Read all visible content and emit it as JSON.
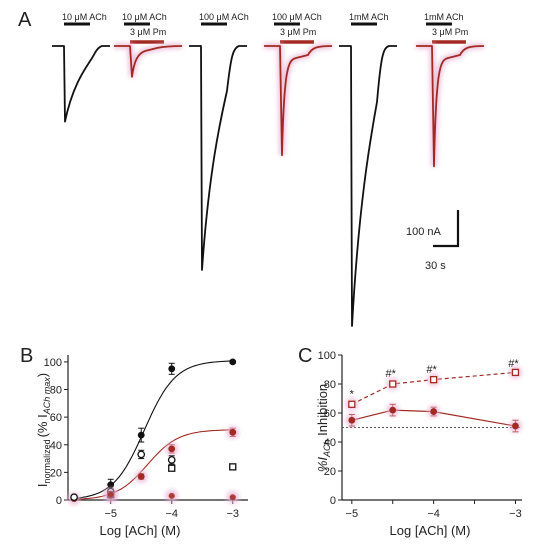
{
  "panels": {
    "A": "A",
    "B": "B",
    "C": "C"
  },
  "colors": {
    "black": "#111111",
    "red": "#a32a22",
    "pink_glow": "#e9b3d6",
    "dash": "#555555"
  },
  "traces": [
    {
      "ach_label": "10 μM ACh",
      "pm_label": "",
      "color": "black",
      "peak_fraction": 0.27
    },
    {
      "ach_label": "10 μM ACh",
      "pm_label": "3 μM Pm",
      "color": "red",
      "peak_fraction": 0.11
    },
    {
      "ach_label": "100 μM ACh",
      "pm_label": "",
      "color": "black",
      "peak_fraction": 0.8
    },
    {
      "ach_label": "100 μM ACh",
      "pm_label": "3 μM Pm",
      "color": "red",
      "peak_fraction": 0.39
    },
    {
      "ach_label": "1mM ACh",
      "pm_label": "",
      "color": "black",
      "peak_fraction": 1.0
    },
    {
      "ach_label": "1mM ACh",
      "pm_label": "3 μM Pm",
      "color": "red",
      "peak_fraction": 0.43
    }
  ],
  "scale_bar": {
    "current": "100 nA",
    "time": "30 s"
  },
  "chart_data": [
    {
      "panel": "B",
      "type": "scatter",
      "xlabel": "Log [ACh] (M)",
      "ylabel_main": "I",
      "ylabel_sub": "normalized",
      "ylabel_paren": "(% I",
      "ylabel_paren_sub": "ACh max",
      "ylabel_close": ")",
      "xlim": [
        -5.7,
        -2.75
      ],
      "ylim": [
        0,
        105
      ],
      "xticks": [
        -5,
        -4,
        -3
      ],
      "xtick_labels": [
        "−5",
        "−4",
        "−3"
      ],
      "yticks": [
        0,
        20,
        40,
        60,
        80,
        100
      ],
      "series": [
        {
          "marker": "filled-circle",
          "color": "black",
          "fit": true,
          "fit_top": 101,
          "fit_ec50": -4.45,
          "fit_hill": 1.7,
          "x": [
            -5.6,
            -5.0,
            -4.5,
            -4.0,
            -3.0
          ],
          "y": [
            2,
            11,
            47,
            95,
            100
          ],
          "err": [
            1.5,
            4,
            5,
            4,
            1
          ]
        },
        {
          "marker": "filled-circle",
          "color": "red",
          "fit": true,
          "fit_top": 51,
          "fit_ec50": -4.4,
          "fit_hill": 1.7,
          "x": [
            -5.6,
            -5.0,
            -4.5,
            -4.0,
            -3.0
          ],
          "y": [
            1,
            3,
            17,
            37,
            49
          ],
          "err": [
            1,
            1.5,
            2,
            3,
            3
          ]
        },
        {
          "marker": "open-circle",
          "color": "black",
          "fit": false,
          "x": [
            -5.6,
            -5.0,
            -4.5,
            -4.0
          ],
          "y": [
            2,
            6,
            33,
            29
          ],
          "err": [
            1,
            2,
            3,
            3
          ]
        },
        {
          "marker": "open-square",
          "color": "black",
          "fit": false,
          "x": [
            -5.0,
            -4.0,
            -3.0
          ],
          "y": [
            4,
            23,
            24
          ],
          "err": [
            1,
            2,
            1.5
          ]
        },
        {
          "marker": "filled-circle-small",
          "color": "red",
          "fit": false,
          "x": [
            -5.0,
            -4.0,
            -3.0
          ],
          "y": [
            4,
            3,
            2
          ],
          "err": [
            0.5,
            0.5,
            0.5
          ]
        }
      ]
    },
    {
      "panel": "C",
      "type": "line",
      "xlabel": "Log [ACh] (M)",
      "ylabel": "%I",
      "ylabel_sub": "ACh",
      "ylabel_tail": " Inhibition",
      "xlim": [
        -5.12,
        -2.92
      ],
      "ylim": [
        0,
        100
      ],
      "xticks": [
        -5,
        -4.5,
        -4,
        -3.5,
        -3
      ],
      "xtick_labels": [
        "−5",
        "",
        "−4",
        "",
        "−3"
      ],
      "yticks": [
        0,
        20,
        40,
        60,
        80,
        100
      ],
      "reference_line": 50,
      "series": [
        {
          "marker": "filled-circle",
          "color": "red",
          "style": "solid",
          "x": [
            -5.0,
            -4.5,
            -4.0,
            -3.0
          ],
          "y": [
            55,
            62,
            61,
            51
          ],
          "err": [
            4,
            4,
            3,
            4
          ],
          "annotations": []
        },
        {
          "marker": "open-square",
          "color": "red",
          "style": "dashed",
          "x": [
            -5.0,
            -4.5,
            -4.0,
            -3.0
          ],
          "y": [
            66,
            80,
            83,
            88
          ],
          "err": [
            2,
            2,
            2,
            1
          ],
          "annotations": [
            "*",
            "#*",
            "#*",
            "#*"
          ]
        }
      ]
    }
  ]
}
